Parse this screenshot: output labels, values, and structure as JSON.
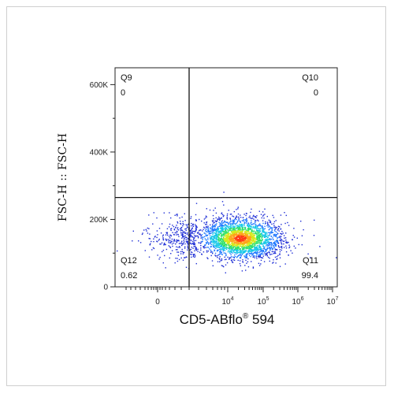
{
  "chart_data": {
    "type": "scatter",
    "title": "",
    "xlabel": "CD5-ABflo® 594",
    "xlabel_parts": {
      "main": "CD5-ABflo",
      "sup": "®",
      "tail": " 594"
    },
    "ylabel": "FSC-H :: FSC-H",
    "x_scale": "biexponential",
    "y_scale": "linear",
    "ylim": [
      0,
      650000
    ],
    "y_ticks": [
      {
        "value": 0,
        "label": "0"
      },
      {
        "value": 200000,
        "label": "200K"
      },
      {
        "value": 400000,
        "label": "400K"
      },
      {
        "value": 600000,
        "label": "600K"
      }
    ],
    "x_ticks": [
      {
        "value": 0,
        "label": "0",
        "exp": ""
      },
      {
        "value": 10000,
        "label": "10",
        "exp": "4"
      },
      {
        "value": 100000,
        "label": "10",
        "exp": "5"
      },
      {
        "value": 1000000,
        "label": "10",
        "exp": "6"
      },
      {
        "value": 10000000,
        "label": "10",
        "exp": "7"
      }
    ],
    "gate": {
      "x_threshold": 1500,
      "y_threshold": 265000
    },
    "quadrants": [
      {
        "id": "Q9",
        "value": "0",
        "position": "top-left"
      },
      {
        "id": "Q10",
        "value": "0",
        "position": "top-right"
      },
      {
        "id": "Q11",
        "value": "99.4",
        "position": "bottom-right"
      },
      {
        "id": "Q12",
        "value": "0.62",
        "position": "bottom-left"
      }
    ],
    "population": {
      "center_x": 40000,
      "center_y": 145000,
      "density_colors": [
        "#1f2fd6",
        "#1f78ff",
        "#16c7e8",
        "#2ee06a",
        "#d6e81a",
        "#ffa318",
        "#ff3b14"
      ]
    },
    "grid": false,
    "legend": "none"
  }
}
